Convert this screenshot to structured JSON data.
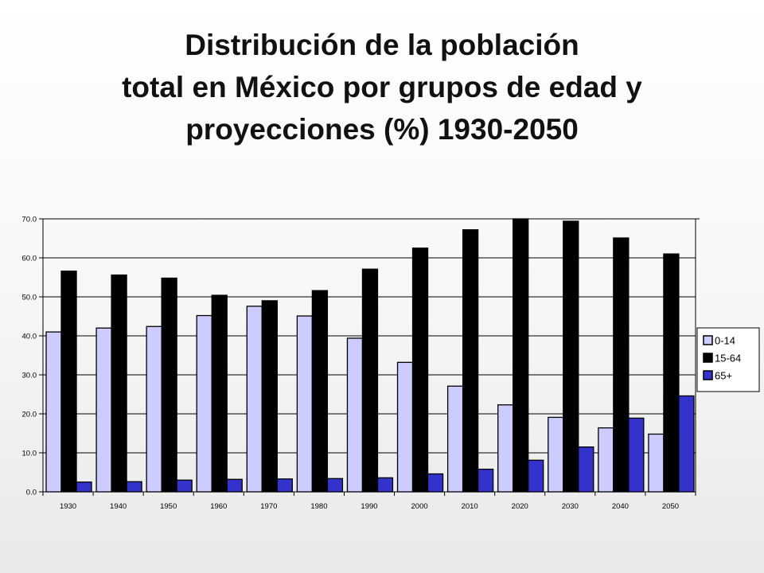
{
  "chart_data": {
    "type": "bar",
    "title_lines": [
      "Distribución de la población",
      "total en México por grupos de edad y",
      "proyecciones (%) 1930-2050"
    ],
    "categories": [
      "1930",
      "1940",
      "1950",
      "1960",
      "1970",
      "1980",
      "1990",
      "2000",
      "2010",
      "2020",
      "2030",
      "2040",
      "2050"
    ],
    "series": [
      {
        "name": "0-14",
        "color": "#ccccff",
        "values": [
          41.0,
          42.0,
          42.4,
          45.2,
          47.6,
          45.1,
          39.4,
          33.2,
          27.1,
          22.3,
          19.1,
          16.4,
          14.8
        ]
      },
      {
        "name": "15-64",
        "color": "#000000",
        "values": [
          56.6,
          55.6,
          54.8,
          50.4,
          49.0,
          51.6,
          57.1,
          62.5,
          67.2,
          70.0,
          69.4,
          65.1,
          61.0
        ]
      },
      {
        "name": "65+",
        "color": "#3333cc",
        "values": [
          2.5,
          2.6,
          3.0,
          3.2,
          3.3,
          3.4,
          3.6,
          4.6,
          5.8,
          8.1,
          11.5,
          18.9,
          24.6
        ]
      }
    ],
    "ylim": [
      0,
      70
    ],
    "ytick_labels": [
      "0.0",
      "10.0",
      "20.0",
      "30.0",
      "40.0",
      "50.0",
      "60.0",
      "70.0"
    ],
    "grid": true,
    "legend": "right"
  }
}
